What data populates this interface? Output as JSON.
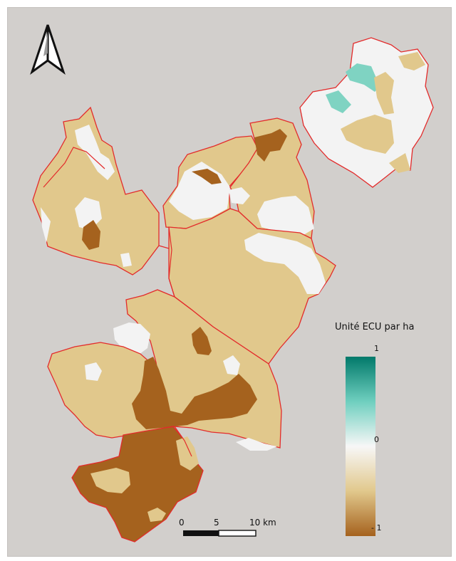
{
  "colors": {
    "background": "#d2cfcc",
    "boundary": "#e32b2b",
    "class_low": "#a5621e",
    "class_mid_low": "#e1c88c",
    "class_zero": "#f3f3f3",
    "class_high": "#7fd3c2",
    "ramp_top": "#01796a",
    "ramp_bottom": "#a5621e"
  },
  "legend": {
    "title": "Unité ECU par ha",
    "max_label": "1",
    "mid_label": "0",
    "min_label": "- 1"
  },
  "scalebar": {
    "ticks": [
      "0",
      "5",
      "10 km"
    ]
  },
  "icons": {
    "north_arrow": "north-arrow-icon"
  }
}
